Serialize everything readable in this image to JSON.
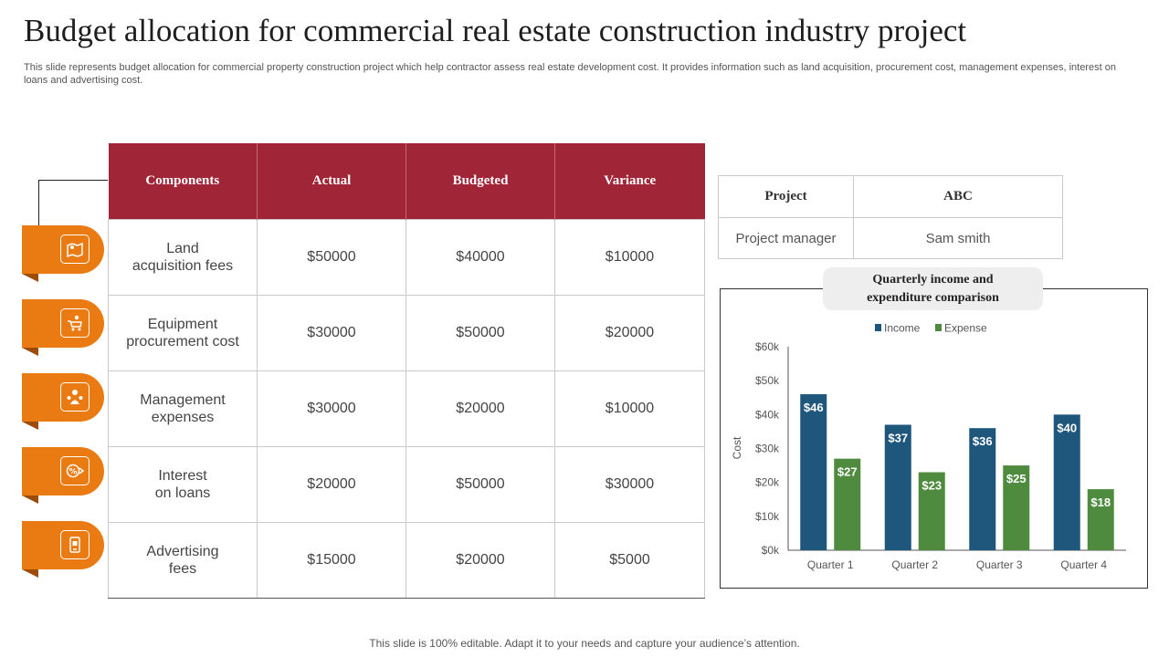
{
  "title": "Budget allocation for commercial real estate construction industry project",
  "subtitle": "This slide represents budget allocation for commercial property construction project which help contractor assess real estate development cost. It provides information such as land acquisition, procurement cost, management expenses, interest on loans and advertising cost.",
  "footer": "This slide is 100% editable. Adapt it to your needs and capture your audience’s attention.",
  "colors": {
    "header": "#a02536",
    "tab": "#ea7a12",
    "income": "#1f567c",
    "expense": "#4e8b3f"
  },
  "budget_table": {
    "headers": [
      "Components",
      "Actual",
      "Budgeted",
      "Variance"
    ],
    "rows": [
      {
        "component_line1": "Land",
        "component_line2": "acquisition fees",
        "actual": "$50000",
        "budgeted": "$40000",
        "variance": "$10000",
        "icon": "land-map-icon"
      },
      {
        "component_line1": "Equipment",
        "component_line2": "procurement cost",
        "actual": "$30000",
        "budgeted": "$50000",
        "variance": "$20000",
        "icon": "shopping-cart-icon"
      },
      {
        "component_line1": "Management",
        "component_line2": "expenses",
        "actual": "$30000",
        "budgeted": "$20000",
        "variance": "$10000",
        "icon": "team-management-icon"
      },
      {
        "component_line1": "Interest",
        "component_line2": "on loans",
        "actual": "$20000",
        "budgeted": "$50000",
        "variance": "$30000",
        "icon": "interest-percent-icon"
      },
      {
        "component_line1": "Advertising",
        "component_line2": "fees",
        "actual": "$15000",
        "budgeted": "$20000",
        "variance": "$5000",
        "icon": "mobile-ad-icon"
      }
    ]
  },
  "project_table": {
    "project_label": "Project",
    "project_value": "ABC",
    "manager_label": "Project manager",
    "manager_value": "Sam smith"
  },
  "chart_title_line1": "Quarterly income and",
  "chart_title_line2": "expenditure comparison",
  "chart_data": {
    "type": "bar",
    "title": "Quarterly income and expenditure comparison",
    "categories": [
      "Quarter 1",
      "Quarter 2",
      "Quarter 3",
      "Quarter 4"
    ],
    "series": [
      {
        "name": "Income",
        "values": [
          46,
          37,
          36,
          40
        ],
        "labels": [
          "$46",
          "$37",
          "$36",
          "$40"
        ],
        "color": "#1f567c"
      },
      {
        "name": "Expense",
        "values": [
          27,
          23,
          25,
          18
        ],
        "labels": [
          "$27",
          "$23",
          "$25",
          "$18"
        ],
        "color": "#4e8b3f"
      }
    ],
    "ylabel": "Cost",
    "ylim": [
      0,
      60
    ],
    "yticks": [
      "$0k",
      "$10k",
      "$20k",
      "$30k",
      "$40k",
      "$50k",
      "$60k"
    ],
    "legend": "top",
    "grid": false
  }
}
